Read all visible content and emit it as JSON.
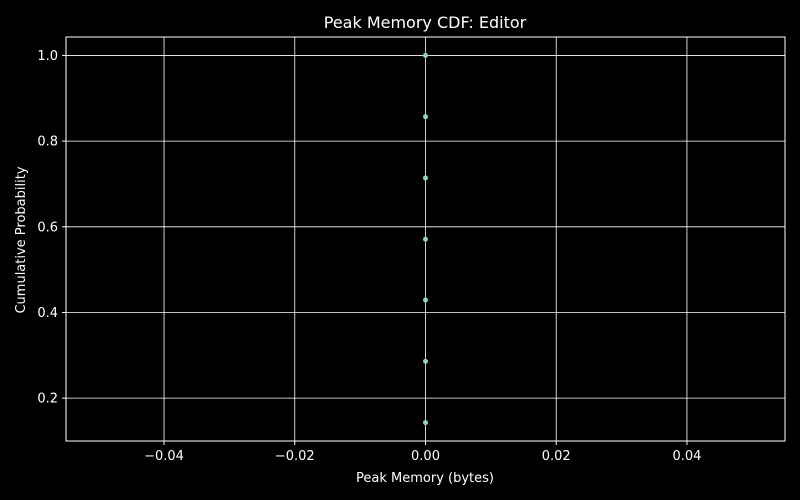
{
  "chart_data": {
    "type": "scatter",
    "title": "Peak Memory CDF: Editor",
    "xlabel": "Peak Memory (bytes)",
    "ylabel": "Cumulative Probability",
    "xlim": [
      -0.055,
      0.055
    ],
    "ylim": [
      0.1,
      1.043
    ],
    "xticks": [
      -0.04,
      -0.02,
      0.0,
      0.02,
      0.04
    ],
    "xtick_labels": [
      "−0.04",
      "−0.02",
      "0.00",
      "0.02",
      "0.04"
    ],
    "yticks": [
      0.2,
      0.4,
      0.6,
      0.8,
      1.0
    ],
    "ytick_labels": [
      "0.2",
      "0.4",
      "0.6",
      "0.8",
      "1.0"
    ],
    "grid": true,
    "background": "#000000",
    "series": [
      {
        "color": "#8dd3c7",
        "points": [
          {
            "x": 0,
            "y": 0.143
          },
          {
            "x": 0,
            "y": 0.286
          },
          {
            "x": 0,
            "y": 0.429
          },
          {
            "x": 0,
            "y": 0.571
          },
          {
            "x": 0,
            "y": 0.714
          },
          {
            "x": 0,
            "y": 0.857
          },
          {
            "x": 0,
            "y": 1.0
          }
        ]
      }
    ]
  }
}
